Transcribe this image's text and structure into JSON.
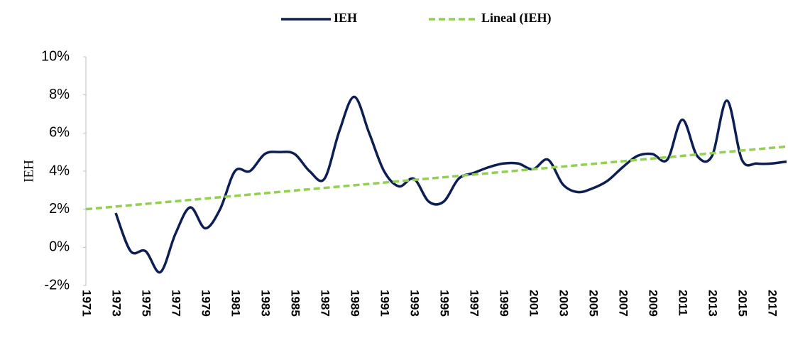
{
  "chart_data": {
    "type": "line",
    "y_label": "IEH",
    "categories": [
      "1971",
      null,
      "1973",
      null,
      "1975",
      null,
      "1977",
      null,
      "1979",
      null,
      "1981",
      null,
      "1983",
      null,
      "1985",
      null,
      "1987",
      null,
      "1989",
      null,
      "1991",
      null,
      "1993",
      null,
      "1995",
      null,
      "1997",
      null,
      "1999",
      null,
      "2001",
      null,
      "2003",
      null,
      "2005",
      null,
      "2007",
      null,
      "2009",
      null,
      "2011",
      null,
      "2013",
      null,
      "2015",
      null,
      "2017",
      null
    ],
    "series": [
      {
        "name": "IEH",
        "color": "#0c1f55",
        "dash": false,
        "values": [
          null,
          null,
          1.8,
          -0.2,
          -0.2,
          -1.3,
          0.7,
          2.1,
          1.0,
          2.0,
          4.0,
          4.0,
          4.9,
          5.0,
          4.9,
          4.0,
          3.6,
          6.1,
          7.9,
          6.0,
          4.0,
          3.2,
          3.6,
          2.4,
          2.4,
          3.6,
          3.9,
          4.2,
          4.4,
          4.4,
          4.1,
          4.6,
          3.3,
          2.9,
          3.1,
          3.5,
          4.2,
          4.8,
          4.9,
          4.6,
          6.7,
          4.8,
          4.8,
          7.7,
          4.6,
          4.4,
          4.4,
          4.5
        ]
      },
      {
        "name": "Lineal (IEH)",
        "color": "#92d050",
        "dash": true,
        "values": [
          2.0,
          2.07,
          2.14,
          2.21,
          2.28,
          2.35,
          2.42,
          2.49,
          2.56,
          2.63,
          2.7,
          2.77,
          2.84,
          2.91,
          2.98,
          3.05,
          3.12,
          3.19,
          3.26,
          3.33,
          3.4,
          3.47,
          3.54,
          3.61,
          3.68,
          3.75,
          3.82,
          3.89,
          3.96,
          4.03,
          4.1,
          4.17,
          4.24,
          4.31,
          4.38,
          4.45,
          4.52,
          4.59,
          4.66,
          4.73,
          4.8,
          4.87,
          4.94,
          5.01,
          5.08,
          5.15,
          5.22,
          5.29
        ]
      }
    ],
    "ylim": [
      -2,
      10
    ],
    "yticks": [
      {
        "value": -2,
        "label": "-2%"
      },
      {
        "value": 0,
        "label": "0%"
      },
      {
        "value": 2,
        "label": "2%"
      },
      {
        "value": 4,
        "label": "4%"
      },
      {
        "value": 6,
        "label": "6%"
      },
      {
        "value": 8,
        "label": "8%"
      },
      {
        "value": 10,
        "label": "10%"
      }
    ],
    "legend": "top"
  }
}
